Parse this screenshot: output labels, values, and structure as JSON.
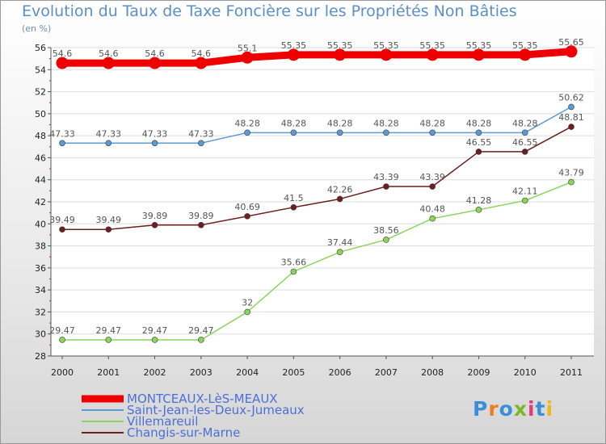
{
  "chart_data": {
    "type": "line",
    "title": "Evolution du Taux de Taxe Foncière sur les Propriétés Non Bâties",
    "ylabel": "(en %)",
    "xlabel": "",
    "ylim": [
      28,
      56
    ],
    "y_ticks": [
      28,
      30,
      32,
      34,
      36,
      38,
      40,
      42,
      44,
      46,
      48,
      50,
      52,
      54,
      56
    ],
    "categories": [
      "2000",
      "2001",
      "2002",
      "2003",
      "2004",
      "2005",
      "2006",
      "2007",
      "2008",
      "2009",
      "2010",
      "2011"
    ],
    "series": [
      {
        "name": "MONTCEAUX-LèS-MEAUX",
        "color": "#ee0000",
        "values": [
          54.6,
          54.6,
          54.6,
          54.6,
          55.1,
          55.35,
          55.35,
          55.35,
          55.35,
          55.35,
          55.35,
          55.65
        ],
        "labels": [
          "54.6",
          "54.6",
          "54.6",
          "54.6",
          "55.1",
          "55.35",
          "55.35",
          "55.35",
          "55.35",
          "55.35",
          "55.35",
          "55.65"
        ]
      },
      {
        "name": "Saint-Jean-les-Deux-Jumeaux",
        "color": "#5b9bd5",
        "values": [
          47.33,
          47.33,
          47.33,
          47.33,
          48.28,
          48.28,
          48.28,
          48.28,
          48.28,
          48.28,
          48.28,
          50.62
        ],
        "labels": [
          "47.33",
          "47.33",
          "47.33",
          "47.33",
          "48.28",
          "48.28",
          "48.28",
          "48.28",
          "48.28",
          "48.28",
          "48.28",
          "50.62"
        ]
      },
      {
        "name": "Villemareuil",
        "color": "#8cd45c",
        "values": [
          29.47,
          29.47,
          29.47,
          29.47,
          32,
          35.66,
          37.44,
          38.56,
          40.48,
          41.28,
          42.11,
          43.79
        ],
        "labels": [
          "29.47",
          "29.47",
          "29.47",
          "29.47",
          "32",
          "35.66",
          "37.44",
          "38.56",
          "40.48",
          "41.28",
          "42.11",
          "43.79"
        ]
      },
      {
        "name": "Changis-sur-Marne",
        "color": "#6b1f1f",
        "values": [
          39.49,
          39.49,
          39.89,
          39.89,
          40.69,
          41.5,
          42.26,
          43.39,
          43.39,
          46.55,
          46.55,
          48.81
        ],
        "labels": [
          "39.49",
          "39.49",
          "39.89",
          "39.89",
          "40.69",
          "41.5",
          "42.26",
          "43.39",
          "43.39",
          "46.55",
          "46.55",
          "48.81"
        ]
      }
    ],
    "legend_position": "bottom-left"
  },
  "logo": {
    "text": "Proxiti",
    "colors": [
      "#3a8fd8",
      "#f07c1e",
      "#3a8fd8",
      "#79b928",
      "#e23d7a",
      "#3a8fd8",
      "#f0b81e"
    ]
  }
}
